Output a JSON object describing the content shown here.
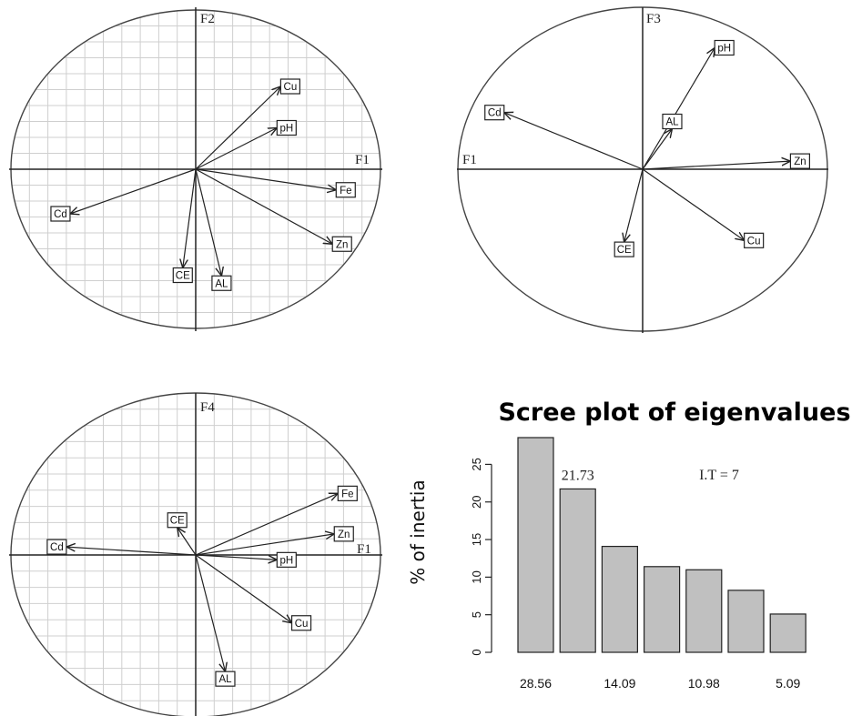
{
  "colors": {
    "bar_fill": "#c0c0c0",
    "grid": "#cfcfcf",
    "ink": "#222222"
  },
  "chart_data": [
    {
      "type": "scatter",
      "x_axis_label": "F1",
      "y_axis_label": "F2",
      "xlim": [
        -1,
        1
      ],
      "ylim": [
        -1,
        1
      ],
      "grid": true,
      "variables": [
        {
          "label": "Cu",
          "x": 0.46,
          "y": 0.52
        },
        {
          "label": "pH",
          "x": 0.44,
          "y": 0.26
        },
        {
          "label": "Fe",
          "x": 0.76,
          "y": -0.13
        },
        {
          "label": "Zn",
          "x": 0.74,
          "y": -0.47
        },
        {
          "label": "Cd",
          "x": -0.68,
          "y": -0.28
        },
        {
          "label": "CE",
          "x": -0.07,
          "y": -0.62
        },
        {
          "label": "AL",
          "x": 0.14,
          "y": -0.67
        }
      ]
    },
    {
      "type": "scatter",
      "x_axis_label": "F1",
      "y_axis_label": "F3",
      "xlim": [
        -1,
        1
      ],
      "ylim": [
        -1,
        1
      ],
      "grid": false,
      "variables": [
        {
          "label": "pH",
          "x": 0.39,
          "y": 0.75
        },
        {
          "label": "AL",
          "x": 0.16,
          "y": 0.25
        },
        {
          "label": "Cd",
          "x": -0.75,
          "y": 0.35
        },
        {
          "label": "Zn",
          "x": 0.8,
          "y": 0.05
        },
        {
          "label": "Cu",
          "x": 0.55,
          "y": -0.44
        },
        {
          "label": "CE",
          "x": -0.1,
          "y": -0.45
        }
      ]
    },
    {
      "type": "scatter",
      "x_axis_label": "F1",
      "y_axis_label": "F4",
      "xlim": [
        -1,
        1
      ],
      "ylim": [
        -1,
        1
      ],
      "grid": true,
      "variables": [
        {
          "label": "Fe",
          "x": 0.77,
          "y": 0.38
        },
        {
          "label": "Zn",
          "x": 0.75,
          "y": 0.13
        },
        {
          "label": "pH",
          "x": 0.44,
          "y": -0.03
        },
        {
          "label": "CE",
          "x": -0.1,
          "y": 0.17
        },
        {
          "label": "Cd",
          "x": -0.7,
          "y": 0.05
        },
        {
          "label": "Cu",
          "x": 0.52,
          "y": -0.42
        },
        {
          "label": "AL",
          "x": 0.16,
          "y": -0.72
        }
      ]
    },
    {
      "type": "bar",
      "title": "Scree plot of eigenvalues",
      "ylabel": "% of inertia",
      "xlabel": "",
      "ylim": [
        0,
        28.56
      ],
      "y_ticks": [
        0,
        5,
        10,
        15,
        20,
        25
      ],
      "values": [
        28.56,
        21.73,
        14.09,
        11.4,
        10.98,
        8.25,
        5.09
      ],
      "category_labels": [
        "28.56",
        "",
        "14.09",
        "",
        "10.98",
        "",
        "5.09"
      ],
      "data_labels": [
        {
          "index": 1,
          "text": "21.73"
        }
      ],
      "annotation": "I.T = 7",
      "grid": false
    }
  ]
}
